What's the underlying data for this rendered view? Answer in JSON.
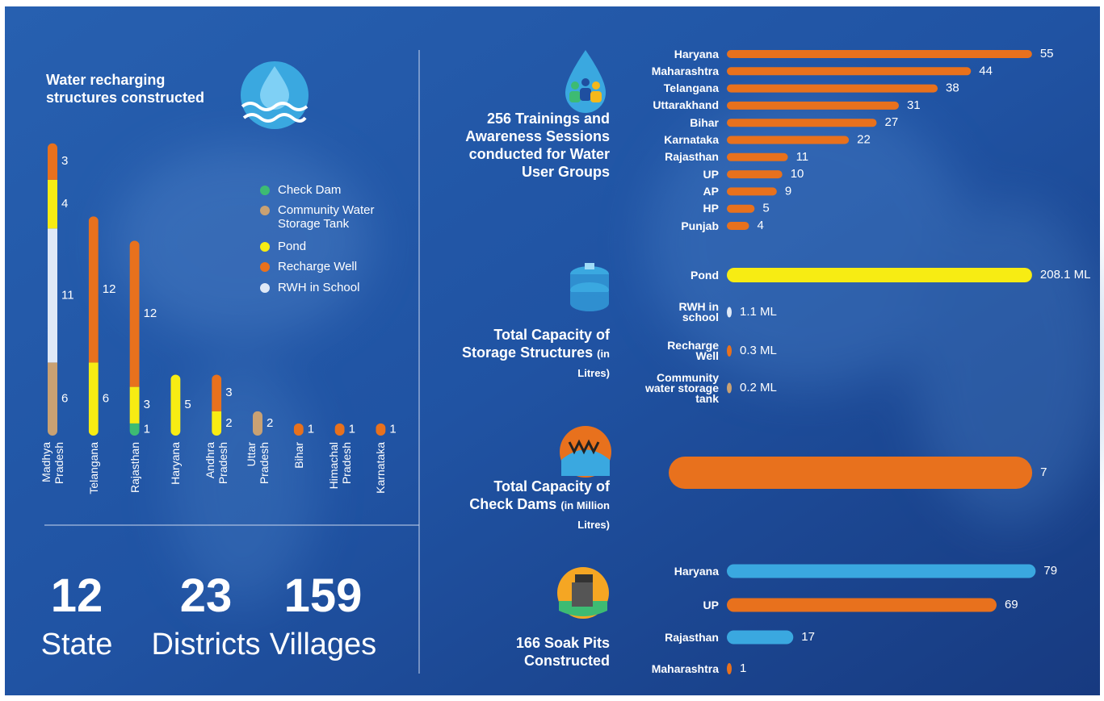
{
  "chart_data": [
    {
      "type": "stacked-bar",
      "title": "Water recharging structures constructed",
      "categories": [
        "Madhya Pradesh",
        "Telangana",
        "Rajasthan",
        "Haryana",
        "Andhra Pradesh",
        "Uttar Pradesh",
        "Bihar",
        "Himachal Pradesh",
        "Karnataka"
      ],
      "series": [
        {
          "name": "Check Dam",
          "color": "#3dbb73",
          "values": [
            null,
            null,
            1,
            null,
            null,
            null,
            null,
            null,
            null
          ]
        },
        {
          "name": "Community Water Storage Tank",
          "color": "#c9a173",
          "values": [
            6,
            null,
            null,
            null,
            null,
            2,
            null,
            null,
            null
          ]
        },
        {
          "name": "Pond",
          "color": "#f7ec13",
          "values": [
            4,
            6,
            3,
            5,
            2,
            null,
            null,
            null,
            null
          ]
        },
        {
          "name": "Recharge Well",
          "color": "#e8711d",
          "values": [
            3,
            12,
            12,
            null,
            3,
            null,
            1,
            1,
            1
          ]
        },
        {
          "name": "RWH in School",
          "color": "#dfe9f7",
          "values": [
            11,
            null,
            null,
            null,
            null,
            null,
            null,
            null,
            null
          ]
        }
      ]
    },
    {
      "type": "hbar",
      "title": "256 Trainings and Awareness Sessions conducted for Water User Groups",
      "categories": [
        "Haryana",
        "Maharashtra",
        "Telangana",
        "Uttarakhand",
        "Bihar",
        "Karnataka",
        "Rajasthan",
        "UP",
        "AP",
        "HP",
        "Punjab"
      ],
      "values": [
        55,
        44,
        38,
        31,
        27,
        22,
        11,
        10,
        9,
        5,
        4
      ],
      "color": "#e8711d"
    },
    {
      "type": "hbar",
      "title": "Total Capacity of Storage Structures",
      "subtitle": "(in Litres)",
      "categories": [
        "Pond",
        "RWH in school",
        "Recharge Well",
        "Community water storage tank"
      ],
      "values": [
        208.1,
        1.1,
        0.3,
        0.2
      ],
      "value_labels": [
        "208.1 ML",
        "1.1 ML",
        "0.3 ML",
        "0.2 ML"
      ],
      "colors": [
        "#f7ec13",
        "#dfe9f7",
        "#e8711d",
        "#c9a173"
      ]
    },
    {
      "type": "hbar",
      "title": "Total Capacity of Check Dams",
      "subtitle": "(in Million Litres)",
      "values": [
        7
      ],
      "color": "#e8711d"
    },
    {
      "type": "hbar",
      "title": "166 Soak Pits Constructed",
      "categories": [
        "Haryana",
        "UP",
        "Rajasthan",
        "Maharashtra"
      ],
      "values": [
        79,
        69,
        17,
        1
      ],
      "colors": [
        "#3aa8e0",
        "#e8711d",
        "#3aa8e0",
        "#e8711d"
      ]
    }
  ],
  "stats": [
    {
      "value": 12,
      "label": "State"
    },
    {
      "value": 23,
      "label": "Districts"
    },
    {
      "value": 159,
      "label": "Villages"
    }
  ]
}
